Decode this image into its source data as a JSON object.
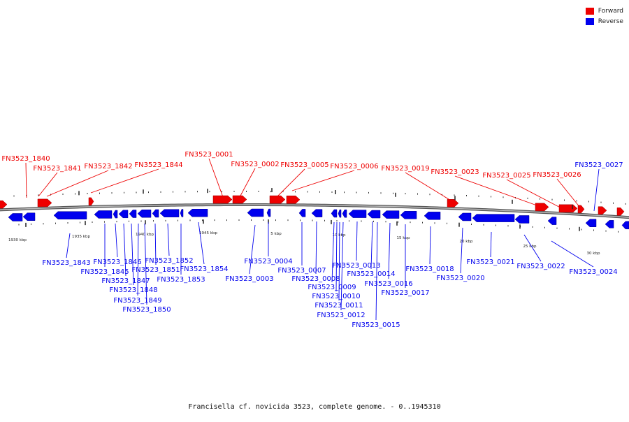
{
  "caption": "Francisella cf. novicida 3523, complete genome. - 0..1945310",
  "legend": [
    {
      "label": "Forward",
      "color": "#ee0000"
    },
    {
      "label": "Reverse",
      "color": "#0000ee"
    }
  ],
  "colors": {
    "forward": "#ee0000",
    "reverse": "#0000ee",
    "backbone": "#888888"
  },
  "scale_labels": [
    {
      "text": "1930 kbp"
    },
    {
      "text": "1935 kbp"
    },
    {
      "text": "1940 kbp"
    },
    {
      "text": "1945 kbp"
    },
    {
      "text": "5 kbp"
    },
    {
      "text": "10 kbp"
    },
    {
      "text": "15 kbp"
    },
    {
      "text": "20 kbp"
    },
    {
      "text": "25 kbp"
    },
    {
      "text": "30 kbp"
    }
  ],
  "gene_labels": [
    {
      "text": "FN3523_1840",
      "strand": "forward"
    },
    {
      "text": "FN3523_1841",
      "strand": "forward"
    },
    {
      "text": "FN3523_1842",
      "strand": "forward"
    },
    {
      "text": "FN3523_1844",
      "strand": "forward"
    },
    {
      "text": "FN3523_0001",
      "strand": "forward"
    },
    {
      "text": "FN3523_0002",
      "strand": "forward"
    },
    {
      "text": "FN3523_0005",
      "strand": "forward"
    },
    {
      "text": "FN3523_0006",
      "strand": "forward"
    },
    {
      "text": "FN3523_0019",
      "strand": "forward"
    },
    {
      "text": "FN3523_0023",
      "strand": "forward"
    },
    {
      "text": "FN3523_0025",
      "strand": "forward"
    },
    {
      "text": "FN3523_0026",
      "strand": "forward"
    },
    {
      "text": "FN3523_0027",
      "strand": "reverse"
    },
    {
      "text": "FN3523_1843",
      "strand": "reverse"
    },
    {
      "text": "FN3523_1845",
      "strand": "reverse"
    },
    {
      "text": "FN3523_1846",
      "strand": "reverse"
    },
    {
      "text": "FN3523_1847",
      "strand": "reverse"
    },
    {
      "text": "FN3523_1848",
      "strand": "reverse"
    },
    {
      "text": "FN3523_1849",
      "strand": "reverse"
    },
    {
      "text": "FN3523_1850",
      "strand": "reverse"
    },
    {
      "text": "FN3523_1851",
      "strand": "reverse"
    },
    {
      "text": "FN3523_1852",
      "strand": "reverse"
    },
    {
      "text": "FN3523_1853",
      "strand": "reverse"
    },
    {
      "text": "FN3523_1854",
      "strand": "reverse"
    },
    {
      "text": "FN3523_0003",
      "strand": "reverse"
    },
    {
      "text": "FN3523_0004",
      "strand": "reverse"
    },
    {
      "text": "FN3523_0007",
      "strand": "reverse"
    },
    {
      "text": "FN3523_0008",
      "strand": "reverse"
    },
    {
      "text": "FN3523_0009",
      "strand": "reverse"
    },
    {
      "text": "FN3523_0010",
      "strand": "reverse"
    },
    {
      "text": "FN3523_0011",
      "strand": "reverse"
    },
    {
      "text": "FN3523_0012",
      "strand": "reverse"
    },
    {
      "text": "FN3523_0013",
      "strand": "reverse"
    },
    {
      "text": "FN3523_0014",
      "strand": "reverse"
    },
    {
      "text": "FN3523_0015",
      "strand": "reverse"
    },
    {
      "text": "FN3523_0016",
      "strand": "reverse"
    },
    {
      "text": "FN3523_0017",
      "strand": "reverse"
    },
    {
      "text": "FN3523_0018",
      "strand": "reverse"
    },
    {
      "text": "FN3523_0020",
      "strand": "reverse"
    },
    {
      "text": "FN3523_0021",
      "strand": "reverse"
    },
    {
      "text": "FN3523_0022",
      "strand": "reverse"
    },
    {
      "text": "FN3523_0024",
      "strand": "reverse"
    }
  ]
}
